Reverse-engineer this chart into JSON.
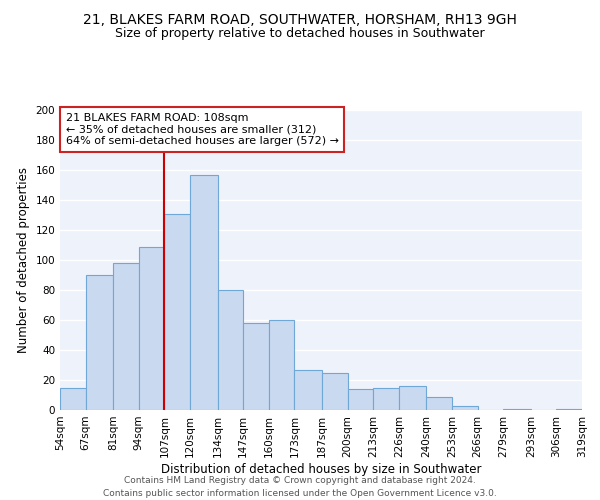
{
  "title": "21, BLAKES FARM ROAD, SOUTHWATER, HORSHAM, RH13 9GH",
  "subtitle": "Size of property relative to detached houses in Southwater",
  "xlabel": "Distribution of detached houses by size in Southwater",
  "ylabel": "Number of detached properties",
  "bar_color": "#c9d9f0",
  "bar_edge_color": "#6fa8d6",
  "vline_color": "#cc0000",
  "vline_x": 107,
  "annotation_title": "21 BLAKES FARM ROAD: 108sqm",
  "annotation_line1": "← 35% of detached houses are smaller (312)",
  "annotation_line2": "64% of semi-detached houses are larger (572) →",
  "annotation_box_color": "white",
  "annotation_box_edge": "#cc2222",
  "footer1": "Contains HM Land Registry data © Crown copyright and database right 2024.",
  "footer2": "Contains public sector information licensed under the Open Government Licence v3.0.",
  "bins": [
    54,
    67,
    81,
    94,
    107,
    120,
    134,
    147,
    160,
    173,
    187,
    200,
    213,
    226,
    240,
    253,
    266,
    279,
    293,
    306,
    319
  ],
  "counts": [
    15,
    90,
    98,
    109,
    131,
    157,
    80,
    58,
    60,
    27,
    25,
    14,
    15,
    16,
    9,
    3,
    0,
    1,
    0,
    1
  ],
  "ylim": [
    0,
    200
  ],
  "yticks": [
    0,
    20,
    40,
    60,
    80,
    100,
    120,
    140,
    160,
    180,
    200
  ],
  "background_color": "#eef2fa",
  "grid_color": "#ffffff",
  "title_fontsize": 10,
  "subtitle_fontsize": 9,
  "axis_label_fontsize": 8.5,
  "tick_fontsize": 7.5,
  "annotation_fontsize": 8,
  "footer_fontsize": 6.5
}
